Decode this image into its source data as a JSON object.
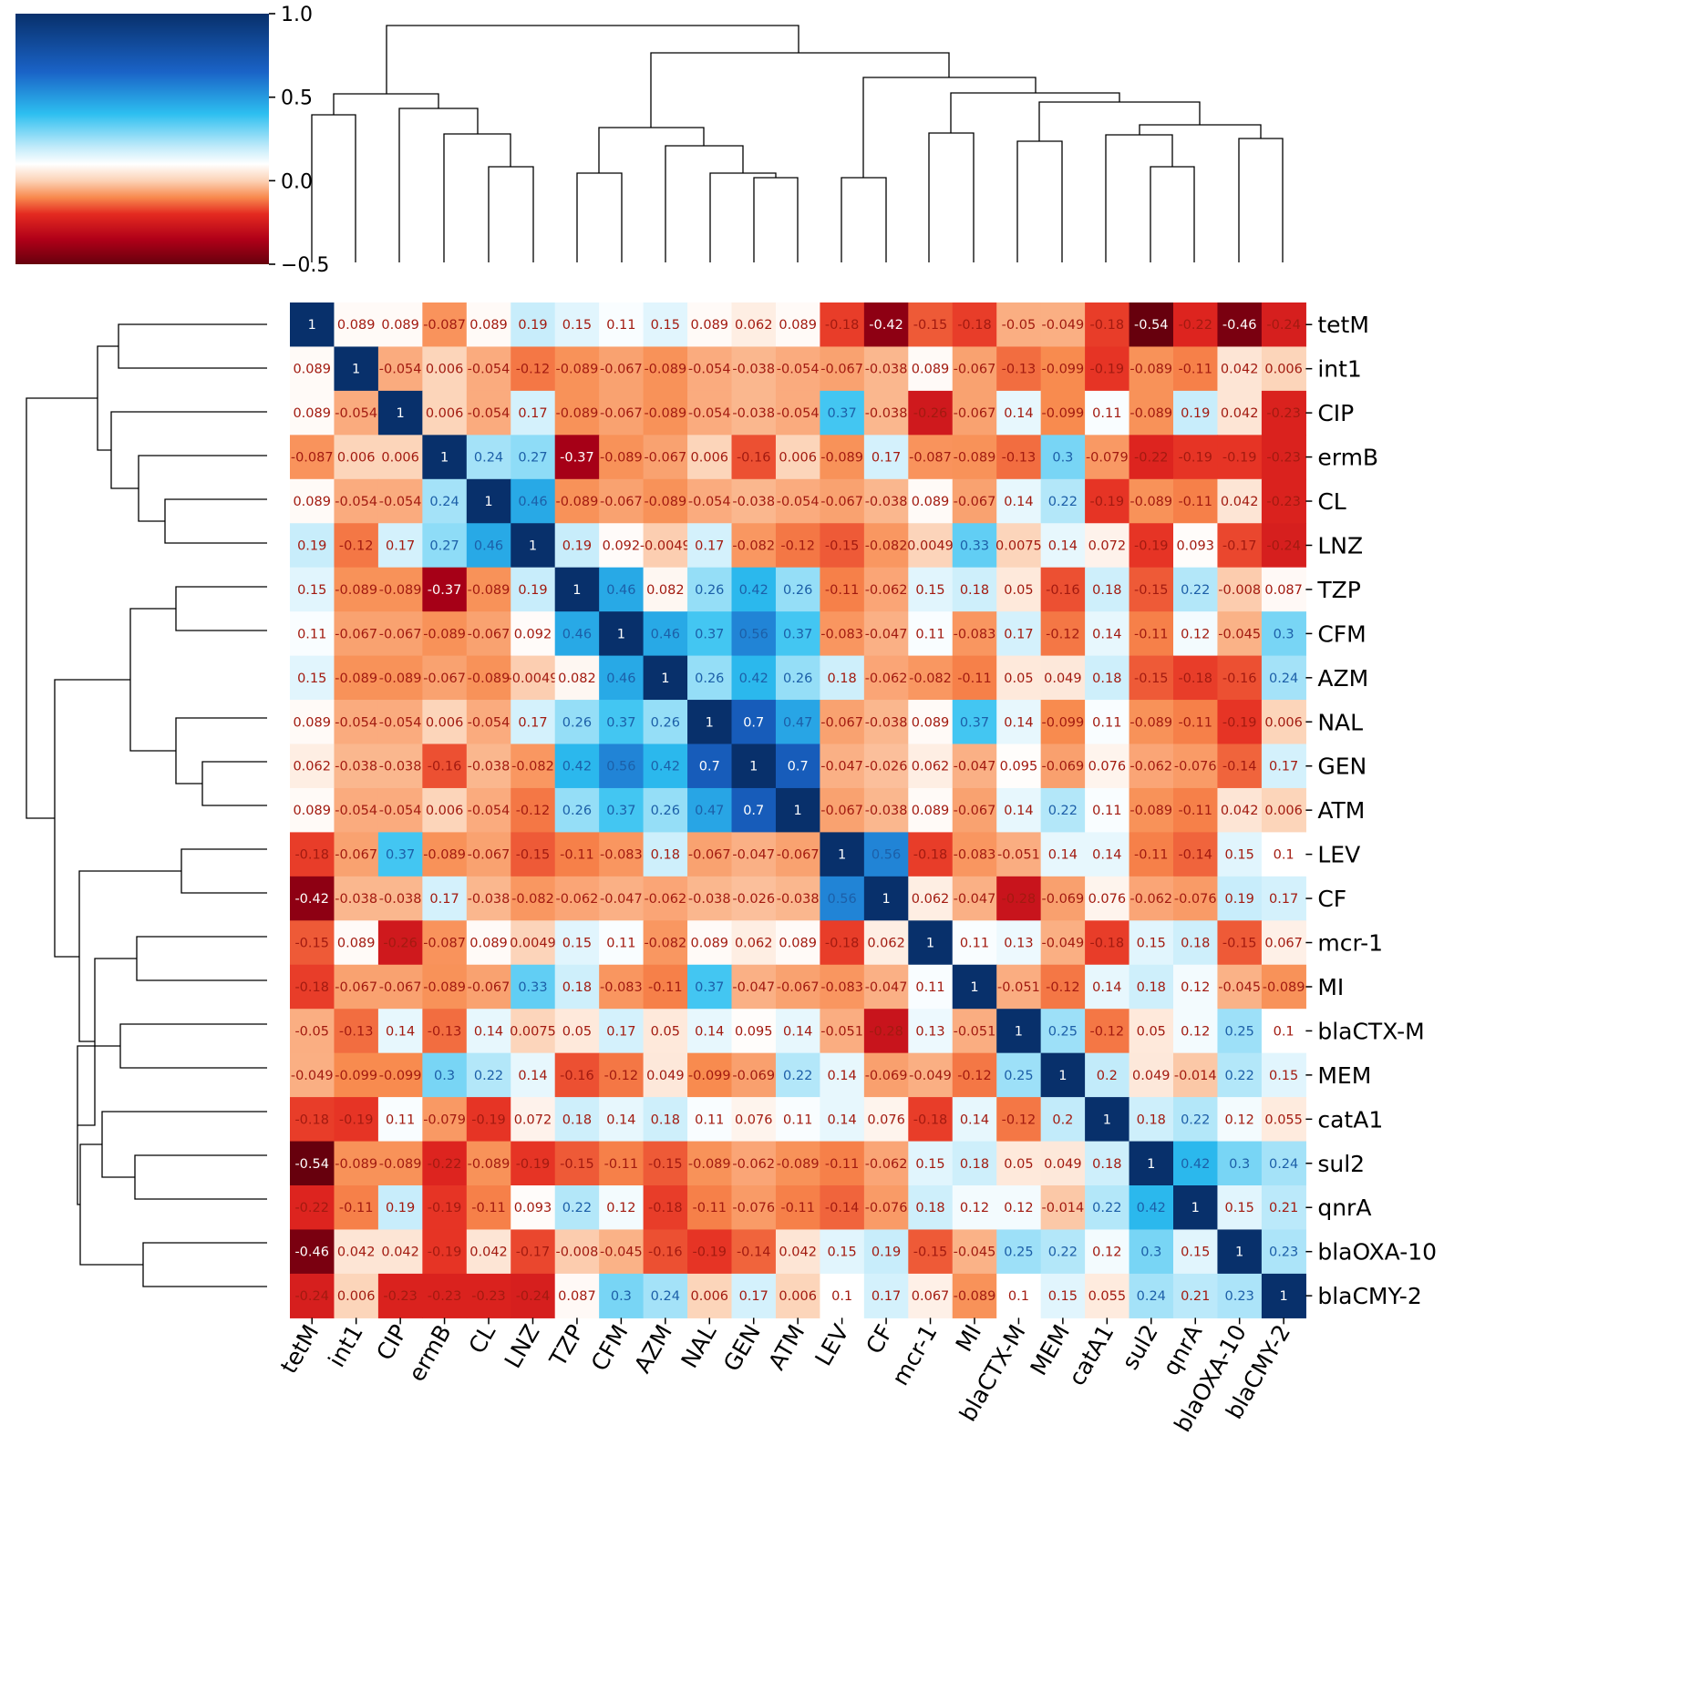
{
  "chart_data": {
    "type": "heatmap",
    "subtype": "clustered correlation heatmap with dendrograms",
    "labels": [
      "tetM",
      "int1",
      "CIP",
      "ermB",
      "CL",
      "LNZ",
      "TZP",
      "CFM",
      "AZM",
      "NAL",
      "GEN",
      "ATM",
      "LEV",
      "CF",
      "mcr-1",
      "MI",
      "blaCTX-M",
      "MEM",
      "catA1",
      "sul2",
      "qnrA",
      "blaOXA-10",
      "blaCMY-2"
    ],
    "values": [
      [
        "1",
        "0.089",
        "0.089",
        "-0.087",
        "0.089",
        "0.19",
        "0.15",
        "0.11",
        "0.15",
        "0.089",
        "0.062",
        "0.089",
        "-0.18",
        "-0.42",
        "-0.15",
        "-0.18",
        "-0.05",
        "-0.049",
        "-0.18",
        "-0.54",
        "-0.22",
        "-0.46",
        "-0.24"
      ],
      [
        "0.089",
        "1",
        "-0.054",
        "0.006",
        "-0.054",
        "-0.12",
        "-0.089",
        "-0.067",
        "-0.089",
        "-0.054",
        "-0.038",
        "-0.054",
        "-0.067",
        "-0.038",
        "0.089",
        "-0.067",
        "-0.13",
        "-0.099",
        "-0.19",
        "-0.089",
        "-0.11",
        "0.042",
        "0.006"
      ],
      [
        "0.089",
        "-0.054",
        "1",
        "0.006",
        "-0.054",
        "0.17",
        "-0.089",
        "-0.067",
        "-0.089",
        "-0.054",
        "-0.038",
        "-0.054",
        "0.37",
        "-0.038",
        "-0.26",
        "-0.067",
        "0.14",
        "-0.099",
        "0.11",
        "-0.089",
        "0.19",
        "0.042",
        "-0.23"
      ],
      [
        "-0.087",
        "0.006",
        "0.006",
        "1",
        "0.24",
        "0.27",
        "-0.37",
        "-0.089",
        "-0.067",
        "0.006",
        "-0.16",
        "0.006",
        "-0.089",
        "0.17",
        "-0.087",
        "-0.089",
        "-0.13",
        "0.3",
        "-0.079",
        "-0.22",
        "-0.19",
        "-0.19",
        "-0.23"
      ],
      [
        "0.089",
        "-0.054",
        "-0.054",
        "0.24",
        "1",
        "0.46",
        "-0.089",
        "-0.067",
        "-0.089",
        "-0.054",
        "-0.038",
        "-0.054",
        "-0.067",
        "-0.038",
        "0.089",
        "-0.067",
        "0.14",
        "0.22",
        "-0.19",
        "-0.089",
        "-0.11",
        "0.042",
        "-0.23"
      ],
      [
        "0.19",
        "-0.12",
        "0.17",
        "0.27",
        "0.46",
        "1",
        "0.19",
        "0.092",
        "-0.0049",
        "0.17",
        "-0.082",
        "-0.12",
        "-0.15",
        "-0.082",
        "0.0049",
        "0.33",
        "0.0075",
        "0.14",
        "0.072",
        "-0.19",
        "0.093",
        "-0.17",
        "-0.24"
      ],
      [
        "0.15",
        "-0.089",
        "-0.089",
        "-0.37",
        "-0.089",
        "0.19",
        "1",
        "0.46",
        "0.082",
        "0.26",
        "0.42",
        "0.26",
        "-0.11",
        "-0.062",
        "0.15",
        "0.18",
        "0.05",
        "-0.16",
        "0.18",
        "-0.15",
        "0.22",
        "-0.008",
        "0.087"
      ],
      [
        "0.11",
        "-0.067",
        "-0.067",
        "-0.089",
        "-0.067",
        "0.092",
        "0.46",
        "1",
        "0.46",
        "0.37",
        "0.56",
        "0.37",
        "-0.083",
        "-0.047",
        "0.11",
        "-0.083",
        "0.17",
        "-0.12",
        "0.14",
        "-0.11",
        "0.12",
        "-0.045",
        "0.3"
      ],
      [
        "0.15",
        "-0.089",
        "-0.089",
        "-0.067",
        "-0.089",
        "-0.0049",
        "0.082",
        "0.46",
        "1",
        "0.26",
        "0.42",
        "0.26",
        "0.18",
        "-0.062",
        "-0.082",
        "-0.11",
        "0.05",
        "0.049",
        "0.18",
        "-0.15",
        "-0.18",
        "-0.16",
        "0.24"
      ],
      [
        "0.089",
        "-0.054",
        "-0.054",
        "0.006",
        "-0.054",
        "0.17",
        "0.26",
        "0.37",
        "0.26",
        "1",
        "0.7",
        "0.47",
        "-0.067",
        "-0.038",
        "0.089",
        "0.37",
        "0.14",
        "-0.099",
        "0.11",
        "-0.089",
        "-0.11",
        "-0.19",
        "0.006"
      ],
      [
        "0.062",
        "-0.038",
        "-0.038",
        "-0.16",
        "-0.038",
        "-0.082",
        "0.42",
        "0.56",
        "0.42",
        "0.7",
        "1",
        "0.7",
        "-0.047",
        "-0.026",
        "0.062",
        "-0.047",
        "0.095",
        "-0.069",
        "0.076",
        "-0.062",
        "-0.076",
        "-0.14",
        "0.17"
      ],
      [
        "0.089",
        "-0.054",
        "-0.054",
        "0.006",
        "-0.054",
        "-0.12",
        "0.26",
        "0.37",
        "0.26",
        "0.47",
        "0.7",
        "1",
        "-0.067",
        "-0.038",
        "0.089",
        "-0.067",
        "0.14",
        "0.22",
        "0.11",
        "-0.089",
        "-0.11",
        "0.042",
        "0.006"
      ],
      [
        "-0.18",
        "-0.067",
        "0.37",
        "-0.089",
        "-0.067",
        "-0.15",
        "-0.11",
        "-0.083",
        "0.18",
        "-0.067",
        "-0.047",
        "-0.067",
        "1",
        "0.56",
        "-0.18",
        "-0.083",
        "-0.051",
        "0.14",
        "0.14",
        "-0.11",
        "-0.14",
        "0.15",
        "0.1"
      ],
      [
        "-0.42",
        "-0.038",
        "-0.038",
        "0.17",
        "-0.038",
        "-0.082",
        "-0.062",
        "-0.047",
        "-0.062",
        "-0.038",
        "-0.026",
        "-0.038",
        "0.56",
        "1",
        "0.062",
        "-0.047",
        "-0.28",
        "-0.069",
        "0.076",
        "-0.062",
        "-0.076",
        "0.19",
        "0.17"
      ],
      [
        "-0.15",
        "0.089",
        "-0.26",
        "-0.087",
        "0.089",
        "0.0049",
        "0.15",
        "0.11",
        "-0.082",
        "0.089",
        "0.062",
        "0.089",
        "-0.18",
        "0.062",
        "1",
        "0.11",
        "0.13",
        "-0.049",
        "-0.18",
        "0.15",
        "0.18",
        "-0.15",
        "0.067"
      ],
      [
        "-0.18",
        "-0.067",
        "-0.067",
        "-0.089",
        "-0.067",
        "0.33",
        "0.18",
        "-0.083",
        "-0.11",
        "0.37",
        "-0.047",
        "-0.067",
        "-0.083",
        "-0.047",
        "0.11",
        "1",
        "-0.051",
        "-0.12",
        "0.14",
        "0.18",
        "0.12",
        "-0.045",
        "-0.089"
      ],
      [
        "-0.05",
        "-0.13",
        "0.14",
        "-0.13",
        "0.14",
        "0.0075",
        "0.05",
        "0.17",
        "0.05",
        "0.14",
        "0.095",
        "0.14",
        "-0.051",
        "-0.28",
        "0.13",
        "-0.051",
        "1",
        "0.25",
        "-0.12",
        "0.05",
        "0.12",
        "0.25",
        "0.1"
      ],
      [
        "-0.049",
        "-0.099",
        "-0.099",
        "0.3",
        "0.22",
        "0.14",
        "-0.16",
        "-0.12",
        "0.049",
        "-0.099",
        "-0.069",
        "0.22",
        "0.14",
        "-0.069",
        "-0.049",
        "-0.12",
        "0.25",
        "1",
        "0.2",
        "0.049",
        "-0.014",
        "0.22",
        "0.15"
      ],
      [
        "-0.18",
        "-0.19",
        "0.11",
        "-0.079",
        "-0.19",
        "0.072",
        "0.18",
        "0.14",
        "0.18",
        "0.11",
        "0.076",
        "0.11",
        "0.14",
        "0.076",
        "-0.18",
        "0.14",
        "-0.12",
        "0.2",
        "1",
        "0.18",
        "0.22",
        "0.12",
        "0.055"
      ],
      [
        "-0.54",
        "-0.089",
        "-0.089",
        "-0.22",
        "-0.089",
        "-0.19",
        "-0.15",
        "-0.11",
        "-0.15",
        "-0.089",
        "-0.062",
        "-0.089",
        "-0.11",
        "-0.062",
        "0.15",
        "0.18",
        "0.05",
        "0.049",
        "0.18",
        "1",
        "0.42",
        "0.3",
        "0.24"
      ],
      [
        "-0.22",
        "-0.11",
        "0.19",
        "-0.19",
        "-0.11",
        "0.093",
        "0.22",
        "0.12",
        "-0.18",
        "-0.11",
        "-0.076",
        "-0.11",
        "-0.14",
        "-0.076",
        "0.18",
        "0.12",
        "0.12",
        "-0.014",
        "0.22",
        "0.42",
        "1",
        "0.15",
        "0.21"
      ],
      [
        "-0.46",
        "0.042",
        "0.042",
        "-0.19",
        "0.042",
        "-0.17",
        "-0.008",
        "-0.045",
        "-0.16",
        "-0.19",
        "-0.14",
        "0.042",
        "0.15",
        "0.19",
        "-0.15",
        "-0.045",
        "0.25",
        "0.22",
        "0.12",
        "0.3",
        "0.15",
        "1",
        "0.23"
      ],
      [
        "-0.24",
        "0.006",
        "-0.23",
        "-0.23",
        "-0.23",
        "-0.24",
        "0.087",
        "0.3",
        "0.24",
        "0.006",
        "0.17",
        "0.006",
        "0.1",
        "0.17",
        "0.067",
        "-0.089",
        "0.1",
        "0.15",
        "0.055",
        "0.24",
        "0.21",
        "0.23",
        "1"
      ]
    ],
    "colorbar": {
      "vmin": -0.5,
      "vmax": 1.0,
      "ticks": [
        "1.0",
        "0.5",
        "0.0",
        "−0.5"
      ],
      "tick_values": [
        1.0,
        0.5,
        0.0,
        -0.5
      ],
      "colormap": [
        "#67000d",
        "#b00018",
        "#e42a20",
        "#f88a4e",
        "#fcd2b6",
        "#ffffff",
        "#c2ebfa",
        "#2dbff0",
        "#1a63c7",
        "#08306b"
      ],
      "colormap_stops": [
        -0.5,
        -0.35,
        -0.2,
        -0.1,
        0.0,
        0.1,
        0.2,
        0.4,
        0.65,
        1.0
      ]
    },
    "dendrogram": {
      "leaf_order": [
        "tetM",
        "int1",
        "CIP",
        "ermB",
        "CL",
        "LNZ",
        "TZP",
        "CFM",
        "AZM",
        "NAL",
        "GEN",
        "ATM",
        "LEV",
        "CF",
        "mcr-1",
        "MI",
        "blaCTX-M",
        "MEM",
        "catA1",
        "sul2",
        "qnrA",
        "blaOXA-10",
        "blaCMY-2"
      ],
      "merges": [
        {
          "left": 10,
          "right": 11,
          "height": 0.15
        },
        {
          "left": 9,
          "right": "GEN+ATM",
          "height": 0.22
        },
        {
          "left": 19,
          "right": 20,
          "height": 0.24
        },
        {
          "left": 4,
          "right": 5,
          "height": 0.24
        },
        {
          "left": 6,
          "right": 7,
          "height": 0.22
        },
        {
          "left": 12,
          "right": 13,
          "height": 0.21
        },
        {
          "left": 21,
          "right": 22,
          "height": 0.3
        },
        {
          "left": 18,
          "right": "sul2+qnrA",
          "height": 0.35
        },
        {
          "left": 16,
          "right": 17,
          "height": 0.32
        },
        {
          "left": 14,
          "right": 15,
          "height": 0.33
        },
        {
          "left": 3,
          "right": "CL+LNZ",
          "height": 0.32
        },
        {
          "left": 0,
          "right": 1,
          "height": 0.36
        },
        {
          "left": 2,
          "right": "ermB..LNZ",
          "height": 0.39
        }
      ]
    }
  }
}
